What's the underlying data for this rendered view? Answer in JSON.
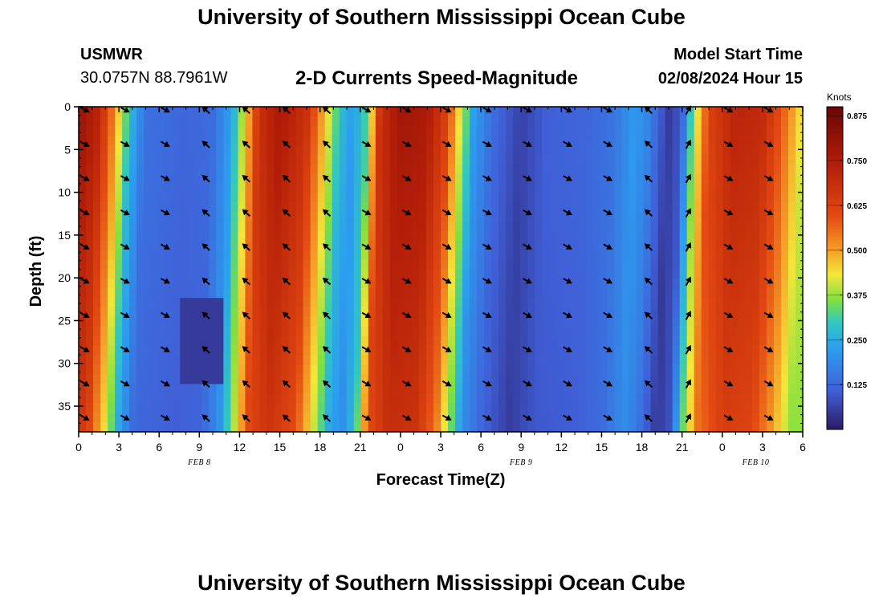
{
  "header": {
    "title": "University of Southern Mississippi Ocean Cube",
    "station": "USMWR",
    "coords": "30.0757N  88.7961W",
    "plot_title": "2-D Currents Speed-Magnitude",
    "model_label": "Model Start Time",
    "model_time": "02/08/2024 Hour 15"
  },
  "footer": {
    "title": "University of Southern Mississippi Ocean Cube"
  },
  "chart_data": {
    "type": "heatmap",
    "title": "2-D Currents Speed-Magnitude",
    "xlabel": "Forecast Time(Z)",
    "ylabel": "Depth (ft)",
    "x_ticks": [
      "0",
      "3",
      "6",
      "9",
      "12",
      "15",
      "18",
      "21",
      "0",
      "3",
      "6",
      "9",
      "12",
      "15",
      "18",
      "21",
      "0",
      "3",
      "6"
    ],
    "x_range_hours": [
      0,
      54
    ],
    "date_labels": [
      {
        "label": "FEB 8",
        "hour": 9
      },
      {
        "label": "FEB 9",
        "hour": 33
      },
      {
        "label": "FEB 10",
        "hour": 50.5
      }
    ],
    "y_ticks": [
      0,
      5,
      10,
      15,
      20,
      25,
      30,
      35
    ],
    "y_range_ft": [
      0,
      38
    ],
    "colorbar": {
      "label": "Knots",
      "range": [
        0,
        0.9
      ],
      "ticks": [
        "0.875",
        "0.750",
        "0.625",
        "0.500",
        "0.375",
        "0.250",
        "0.125"
      ],
      "tick_values": [
        0.875,
        0.75,
        0.625,
        0.5,
        0.375,
        0.25,
        0.125
      ]
    },
    "speed_profile_knots": [
      [
        0,
        0.8
      ],
      [
        1.5,
        0.72
      ],
      [
        2.8,
        0.5
      ],
      [
        3.8,
        0.28
      ],
      [
        5,
        0.14
      ],
      [
        8,
        0.12
      ],
      [
        10,
        0.13
      ],
      [
        11.5,
        0.24
      ],
      [
        12.5,
        0.45
      ],
      [
        13.5,
        0.68
      ],
      [
        15,
        0.76
      ],
      [
        17,
        0.68
      ],
      [
        18.5,
        0.45
      ],
      [
        19.5,
        0.28
      ],
      [
        20.5,
        0.22
      ],
      [
        21.5,
        0.32
      ],
      [
        22.5,
        0.68
      ],
      [
        24,
        0.78
      ],
      [
        26,
        0.76
      ],
      [
        27.5,
        0.62
      ],
      [
        28.5,
        0.42
      ],
      [
        29.5,
        0.22
      ],
      [
        31,
        0.13
      ],
      [
        33,
        0.06
      ],
      [
        35,
        0.11
      ],
      [
        38,
        0.12
      ],
      [
        40,
        0.15
      ],
      [
        41.5,
        0.22
      ],
      [
        42.5,
        0.18
      ],
      [
        44,
        0.05
      ],
      [
        45,
        0.1
      ],
      [
        46,
        0.4
      ],
      [
        47,
        0.62
      ],
      [
        49,
        0.72
      ],
      [
        51,
        0.7
      ],
      [
        52.5,
        0.58
      ],
      [
        54,
        0.42
      ]
    ],
    "arrow_times_hours": [
      0,
      3,
      6,
      9,
      12,
      15,
      18,
      21,
      24,
      27,
      30,
      33,
      36,
      39,
      42,
      45,
      48,
      51
    ],
    "arrow_depths_ft": [
      0,
      4,
      8,
      12,
      16,
      20,
      24,
      28,
      32,
      36
    ],
    "arrow_directions": [
      "SE",
      "SE",
      "SE",
      "NW",
      "NW",
      "NW",
      "NW",
      "SE",
      "SE",
      "SE",
      "SE",
      "SE",
      "SE",
      "SE",
      "NW",
      "NE",
      "SE",
      "SE"
    ]
  }
}
